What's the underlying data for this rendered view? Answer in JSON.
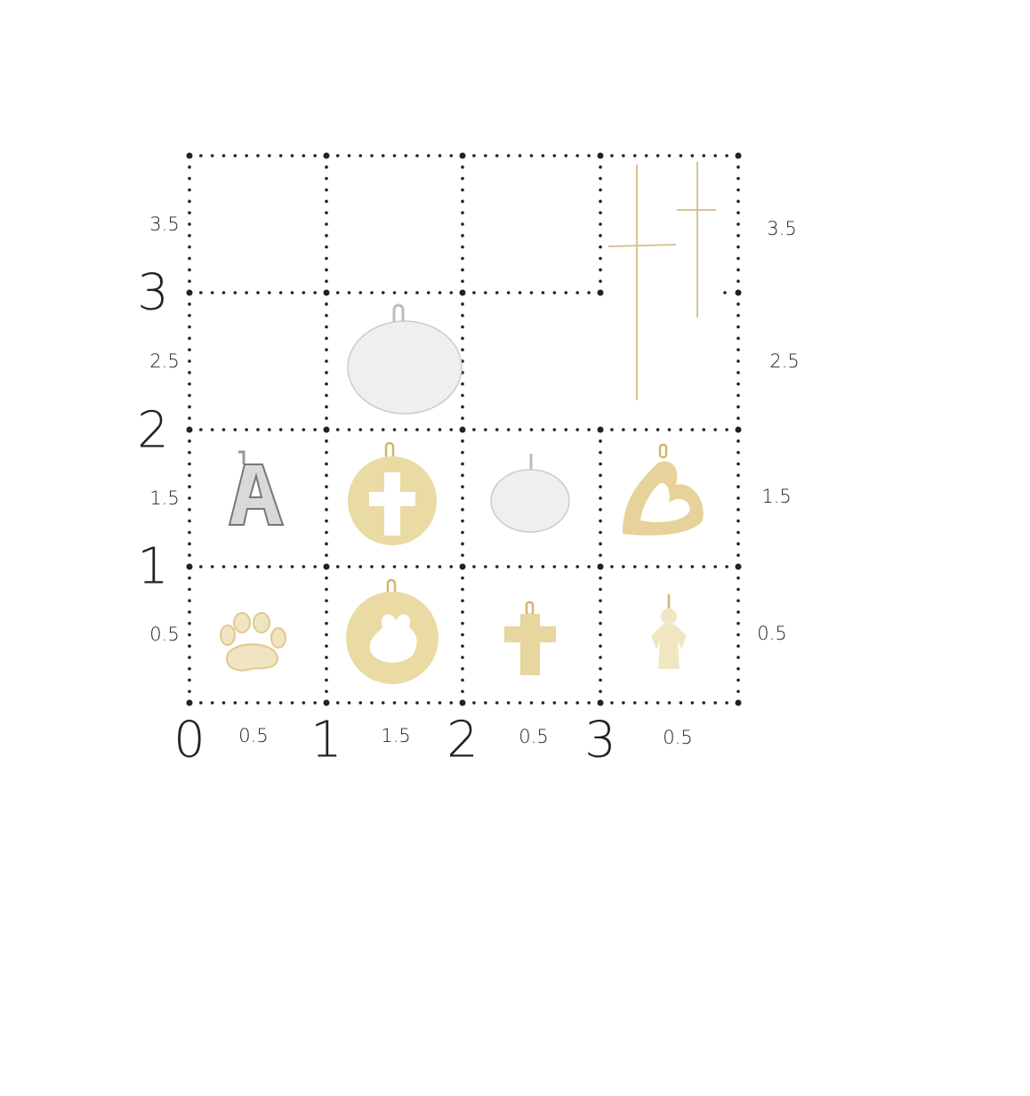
{
  "left_labels": [
    "3.5",
    "3",
    "2.5",
    "2",
    "1.5",
    "1",
    "0.5"
  ],
  "right_labels": [
    "3.5",
    "2.5",
    "1.5",
    "0.5"
  ],
  "bottom_labels": [
    "0",
    "0.5",
    "1",
    "1.5",
    "2",
    "0.5",
    "3",
    "0.5"
  ]
}
